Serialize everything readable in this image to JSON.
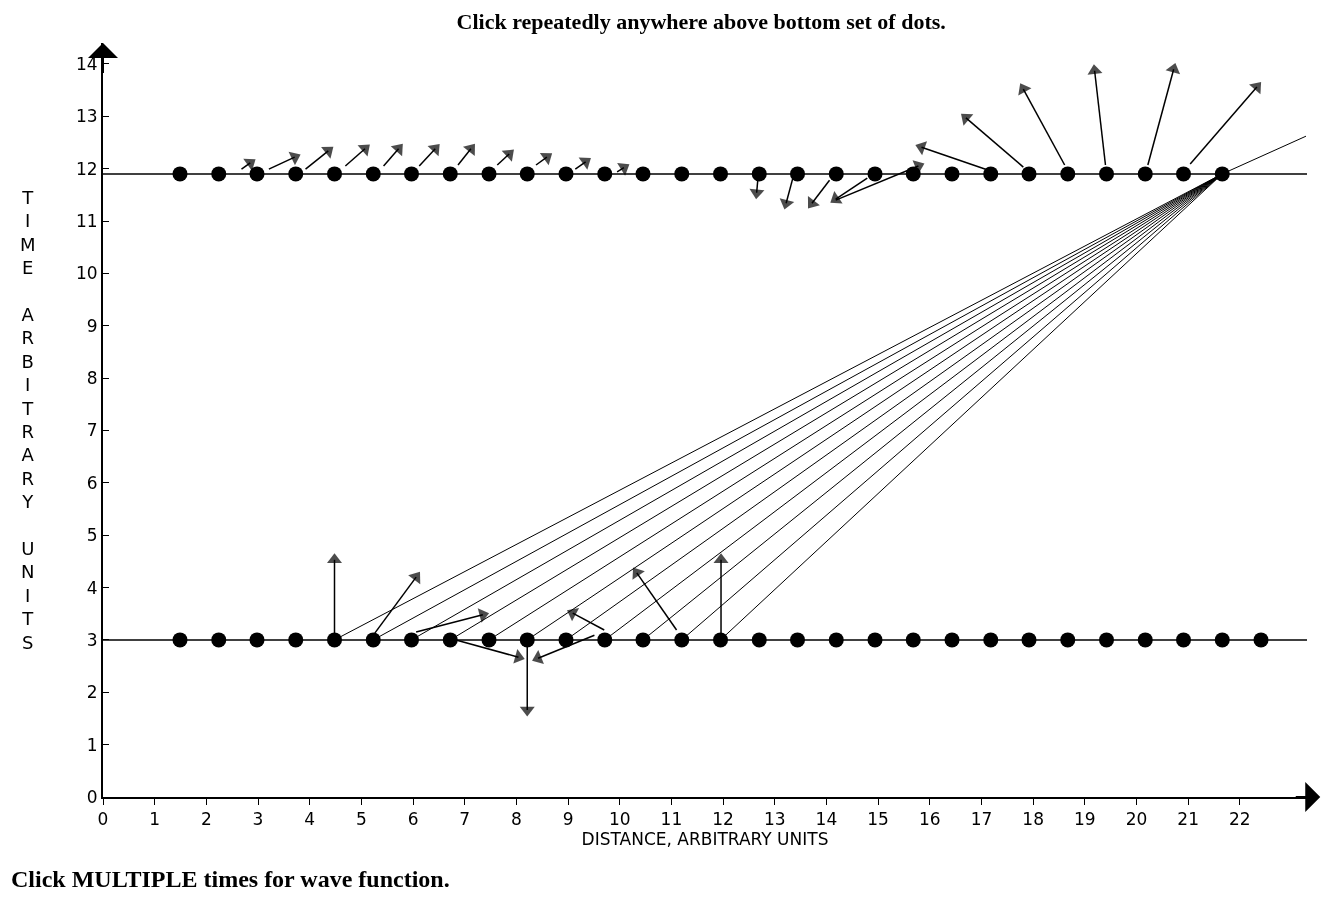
{
  "chart_data": {
    "type": "scatter",
    "title": "Click repeatedly anywhere above bottom set of dots.",
    "xlabel": "DISTANCE, ARBITRARY UNITS",
    "ylabel": "TIME ARBITRARY UNITS",
    "annotations": [
      "Click MULTIPLE times for wave function."
    ],
    "xlim": [
      0,
      23.3
    ],
    "ylim": [
      0,
      14.4
    ],
    "xticks": [
      0,
      1,
      2,
      3,
      4,
      5,
      6,
      7,
      8,
      9,
      10,
      11,
      12,
      13,
      14,
      15,
      16,
      17,
      18,
      19,
      20,
      21,
      22
    ],
    "yticks": [
      0,
      1,
      2,
      3,
      4,
      5,
      6,
      7,
      8,
      9,
      10,
      11,
      12,
      13,
      14
    ],
    "grid": false,
    "ref_lines": [
      {
        "axis": "y",
        "value": 3,
        "color": "#000000"
      },
      {
        "axis": "y",
        "value": 11.9,
        "color": "#000000"
      }
    ],
    "series": [
      {
        "marker": "circle",
        "color": "#000000",
        "x": [
          1.49,
          2.24,
          2.98,
          3.73,
          4.48,
          5.23,
          5.97,
          6.72,
          7.47,
          8.21,
          8.96,
          9.71,
          10.45,
          11.2,
          11.95,
          12.7,
          13.44,
          14.19,
          14.94,
          15.68,
          16.43,
          17.18,
          17.92,
          18.67,
          19.42,
          20.17,
          20.91,
          21.66,
          22.41
        ],
        "values": [
          3,
          3,
          3,
          3,
          3,
          3,
          3,
          3,
          3,
          3,
          3,
          3,
          3,
          3,
          3,
          3,
          3,
          3,
          3,
          3,
          3,
          3,
          3,
          3,
          3,
          3,
          3,
          3,
          3
        ]
      },
      {
        "marker": "circle",
        "color": "#000000",
        "x": [
          1.49,
          2.24,
          2.98,
          3.73,
          4.48,
          5.23,
          5.97,
          6.72,
          7.47,
          8.21,
          8.96,
          9.71,
          10.45,
          11.2,
          11.95,
          12.7,
          13.44,
          14.19,
          14.94,
          15.68,
          16.43,
          17.18,
          17.92,
          18.67,
          19.42,
          20.17,
          20.91,
          21.66
        ],
        "values": [
          11.9,
          11.9,
          11.9,
          11.9,
          11.9,
          11.9,
          11.9,
          11.9,
          11.9,
          11.9,
          11.9,
          11.9,
          11.9,
          11.9,
          11.9,
          11.9,
          11.9,
          11.9,
          11.9,
          11.9,
          11.9,
          11.9,
          11.9,
          11.9,
          11.9,
          11.9,
          11.9,
          11.9
        ]
      },
      {
        "type": "line",
        "marker": "none",
        "color": "#000000",
        "x": [
          4.48,
          21.66
        ],
        "values": [
          3,
          11.9
        ]
      },
      {
        "type": "line",
        "marker": "none",
        "color": "#000000",
        "x": [
          5.23,
          21.66
        ],
        "values": [
          3,
          11.9
        ]
      },
      {
        "type": "line",
        "marker": "none",
        "color": "#000000",
        "x": [
          5.97,
          21.66
        ],
        "values": [
          3,
          11.9
        ]
      },
      {
        "type": "line",
        "marker": "none",
        "color": "#000000",
        "x": [
          6.72,
          21.66
        ],
        "values": [
          3,
          11.9
        ]
      },
      {
        "type": "line",
        "marker": "none",
        "color": "#000000",
        "x": [
          7.47,
          21.66
        ],
        "values": [
          3,
          11.9
        ]
      },
      {
        "type": "line",
        "marker": "none",
        "color": "#000000",
        "x": [
          8.21,
          21.66
        ],
        "values": [
          3,
          11.9
        ]
      },
      {
        "type": "line",
        "marker": "none",
        "color": "#000000",
        "x": [
          8.96,
          21.66
        ],
        "values": [
          3,
          11.9
        ]
      },
      {
        "type": "line",
        "marker": "none",
        "color": "#000000",
        "x": [
          9.71,
          21.66
        ],
        "values": [
          3,
          11.9
        ]
      },
      {
        "type": "line",
        "marker": "none",
        "color": "#000000",
        "x": [
          10.45,
          21.66
        ],
        "values": [
          3,
          11.9
        ]
      },
      {
        "type": "line",
        "marker": "none",
        "color": "#000000",
        "x": [
          11.2,
          21.66
        ],
        "values": [
          3,
          11.9
        ]
      },
      {
        "type": "line",
        "marker": "none",
        "color": "#000000",
        "x": [
          11.95,
          21.66
        ],
        "values": [
          3,
          11.9
        ]
      },
      {
        "type": "line",
        "marker": "none",
        "color": "#000000",
        "x": [
          21.66,
          23.28
        ],
        "values": [
          11.9,
          12.62
        ]
      },
      {
        "type": "line",
        "marker": "triangle",
        "color": "#000000",
        "x": [
          2.68,
          2.85
        ],
        "values": [
          11.99,
          12.11
        ]
      },
      {
        "type": "line",
        "marker": "triangle",
        "color": "#000000",
        "x": [
          3.21,
          3.71
        ],
        "values": [
          11.99,
          12.22
        ]
      },
      {
        "type": "line",
        "marker": "triangle",
        "color": "#000000",
        "x": [
          3.92,
          4.36
        ],
        "values": [
          11.99,
          12.34
        ]
      },
      {
        "type": "line",
        "marker": "triangle",
        "color": "#000000",
        "x": [
          4.69,
          5.07
        ],
        "values": [
          12.05,
          12.38
        ]
      },
      {
        "type": "line",
        "marker": "triangle",
        "color": "#000000",
        "x": [
          5.43,
          5.72
        ],
        "values": [
          12.05,
          12.38
        ]
      },
      {
        "type": "line",
        "marker": "triangle",
        "color": "#000000",
        "x": [
          6.12,
          6.43
        ],
        "values": [
          12.05,
          12.38
        ]
      },
      {
        "type": "line",
        "marker": "triangle",
        "color": "#000000",
        "x": [
          6.87,
          7.12
        ],
        "values": [
          12.07,
          12.38
        ]
      },
      {
        "type": "line",
        "marker": "triangle",
        "color": "#000000",
        "x": [
          7.63,
          7.86
        ],
        "values": [
          12.07,
          12.28
        ]
      },
      {
        "type": "line",
        "marker": "triangle",
        "color": "#000000",
        "x": [
          8.38,
          8.59
        ],
        "values": [
          12.07,
          12.22
        ]
      },
      {
        "type": "line",
        "marker": "triangle",
        "color": "#000000",
        "x": [
          9.14,
          9.34
        ],
        "values": [
          11.99,
          12.13
        ]
      },
      {
        "type": "line",
        "marker": "triangle",
        "color": "#000000",
        "x": [
          9.95,
          10.08
        ],
        "values": [
          11.94,
          12.02
        ]
      },
      {
        "type": "line",
        "marker": "triangle",
        "color": "#000000",
        "x": [
          12.68,
          12.65
        ],
        "values": [
          11.88,
          11.54
        ]
      },
      {
        "type": "line",
        "marker": "triangle",
        "color": "#000000",
        "x": [
          13.35,
          13.22
        ],
        "values": [
          11.82,
          11.34
        ]
      },
      {
        "type": "line",
        "marker": "triangle",
        "color": "#000000",
        "x": [
          14.06,
          13.72
        ],
        "values": [
          11.78,
          11.34
        ]
      },
      {
        "type": "line",
        "marker": "triangle",
        "color": "#000000",
        "x": [
          14.79,
          14.18
        ],
        "values": [
          11.82,
          11.42
        ]
      },
      {
        "type": "line",
        "marker": "triangle",
        "color": "#000000",
        "x": [
          14.18,
          15.78
        ],
        "values": [
          11.4,
          12.05
        ]
      },
      {
        "type": "line",
        "marker": "triangle",
        "color": "#000000",
        "x": [
          17.08,
          15.84
        ],
        "values": [
          11.99,
          12.41
        ]
      },
      {
        "type": "line",
        "marker": "triangle",
        "color": "#000000",
        "x": [
          17.81,
          16.7
        ],
        "values": [
          12.03,
          12.97
        ]
      },
      {
        "type": "line",
        "marker": "triangle",
        "color": "#000000",
        "x": [
          18.61,
          17.81
        ],
        "values": [
          12.07,
          13.52
        ]
      },
      {
        "type": "line",
        "marker": "triangle",
        "color": "#000000",
        "x": [
          19.4,
          19.19
        ],
        "values": [
          12.07,
          13.87
        ]
      },
      {
        "type": "line",
        "marker": "triangle",
        "color": "#000000",
        "x": [
          20.22,
          20.72
        ],
        "values": [
          12.07,
          13.9
        ]
      },
      {
        "type": "line",
        "marker": "triangle",
        "color": "#000000",
        "x": [
          21.04,
          22.33
        ],
        "values": [
          12.09,
          13.56
        ]
      },
      {
        "type": "line",
        "marker": "triangle",
        "color": "#000000",
        "x": [
          4.48,
          4.48
        ],
        "values": [
          3,
          4.53
        ]
      },
      {
        "type": "line",
        "marker": "triangle",
        "color": "#000000",
        "x": [
          5.26,
          6.06
        ],
        "values": [
          3.13,
          4.2
        ]
      },
      {
        "type": "line",
        "marker": "triangle",
        "color": "#000000",
        "x": [
          6.06,
          7.35
        ],
        "values": [
          3.15,
          3.48
        ]
      },
      {
        "type": "line",
        "marker": "triangle",
        "color": "#000000",
        "x": [
          6.83,
          8.04
        ],
        "values": [
          3,
          2.67
        ]
      },
      {
        "type": "line",
        "marker": "triangle",
        "color": "#000000",
        "x": [
          8.21,
          8.21
        ],
        "values": [
          3,
          1.66
        ]
      },
      {
        "type": "line",
        "marker": "triangle",
        "color": "#000000",
        "x": [
          9.51,
          8.42
        ],
        "values": [
          3.09,
          2.65
        ]
      },
      {
        "type": "line",
        "marker": "triangle",
        "color": "#000000",
        "x": [
          9.7,
          9.09
        ],
        "values": [
          3.19,
          3.51
        ]
      },
      {
        "type": "line",
        "marker": "triangle",
        "color": "#000000",
        "x": [
          11.1,
          10.33
        ],
        "values": [
          3.19,
          4.28
        ]
      },
      {
        "type": "line",
        "marker": "triangle",
        "color": "#000000",
        "x": [
          11.96,
          11.96
        ],
        "values": [
          3.13,
          4.53
        ]
      }
    ]
  }
}
